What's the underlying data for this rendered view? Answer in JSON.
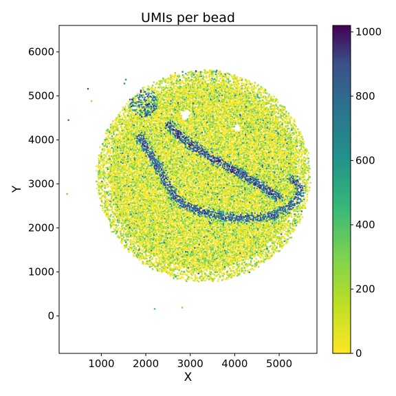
{
  "chart_data": {
    "type": "scatter",
    "title": "UMIs per bead",
    "xlabel": "X",
    "ylabel": "Y",
    "xlim": [
      50,
      5850
    ],
    "ylim": [
      -850,
      6600
    ],
    "x_ticks": [
      1000,
      2000,
      3000,
      4000,
      5000
    ],
    "y_ticks": [
      0,
      1000,
      2000,
      3000,
      4000,
      5000,
      6000
    ],
    "grid": false,
    "colormap": "viridis_r",
    "colorbar": {
      "min": 0,
      "max": 1020,
      "ticks": [
        0,
        200,
        400,
        600,
        800,
        1000
      ]
    },
    "puck": {
      "center": [
        3300,
        3180
      ],
      "radius": 2400
    },
    "structures": [
      {
        "name": "upper band",
        "value": 960,
        "path": [
          [
            2520,
            4330
          ],
          [
            2700,
            4150
          ],
          [
            2950,
            3940
          ],
          [
            3250,
            3740
          ],
          [
            3600,
            3520
          ],
          [
            4000,
            3300
          ],
          [
            4350,
            3110
          ],
          [
            4700,
            2900
          ],
          [
            4980,
            2700
          ]
        ]
      },
      {
        "name": "lower band",
        "value": 920,
        "path": [
          [
            1880,
            4060
          ],
          [
            2020,
            3800
          ],
          [
            2200,
            3520
          ],
          [
            2370,
            3200
          ],
          [
            2560,
            2850
          ],
          [
            2820,
            2550
          ],
          [
            3200,
            2400
          ],
          [
            3600,
            2280
          ],
          [
            4000,
            2230
          ],
          [
            4450,
            2220
          ],
          [
            4850,
            2280
          ],
          [
            5200,
            2450
          ],
          [
            5450,
            2700
          ],
          [
            5480,
            2950
          ],
          [
            5300,
            3100
          ]
        ]
      },
      {
        "name": "upper-left cluster",
        "value": 760,
        "center": [
          1950,
          4850
        ],
        "radius": 330
      }
    ],
    "gaps": [
      {
        "center": [
          2900,
          4580
        ],
        "radius": 110
      },
      {
        "center": [
          4050,
          4280
        ],
        "radius": 70
      }
    ],
    "outliers": [
      [
        700,
        5160
      ],
      [
        780,
        4880
      ],
      [
        260,
        4450
      ],
      [
        230,
        2770
      ],
      [
        1520,
        5280
      ],
      [
        1550,
        5370
      ],
      [
        2200,
        160
      ],
      [
        2820,
        190
      ]
    ]
  }
}
